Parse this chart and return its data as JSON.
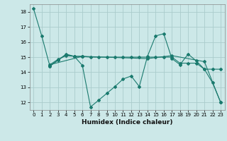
{
  "xlabel": "Humidex (Indice chaleur)",
  "background_color": "#cce8e8",
  "grid_color": "#aacccc",
  "line_color": "#1a7a6e",
  "xlim": [
    -0.5,
    23.5
  ],
  "ylim": [
    11.5,
    18.5
  ],
  "yticks": [
    12,
    13,
    14,
    15,
    16,
    17,
    18
  ],
  "xticks": [
    0,
    1,
    2,
    3,
    4,
    5,
    6,
    7,
    8,
    9,
    10,
    11,
    12,
    13,
    14,
    15,
    16,
    17,
    18,
    19,
    20,
    21,
    22,
    23
  ],
  "lines": [
    {
      "x": [
        0,
        1,
        2,
        3,
        4,
        5,
        6
      ],
      "y": [
        18.2,
        16.4,
        14.4,
        14.8,
        15.15,
        15.05,
        15.05
      ]
    },
    {
      "x": [
        2,
        3,
        4,
        5,
        6,
        7,
        8,
        9,
        10,
        11,
        12,
        13,
        14,
        15,
        16,
        17,
        18,
        19,
        20,
        21,
        22,
        23
      ],
      "y": [
        14.4,
        14.8,
        15.2,
        15.05,
        14.45,
        11.7,
        12.15,
        12.6,
        13.05,
        13.55,
        13.75,
        13.05,
        15.05,
        16.4,
        16.55,
        14.9,
        14.5,
        15.2,
        14.75,
        14.2,
        13.3,
        12.0
      ]
    },
    {
      "x": [
        2,
        3,
        4,
        5,
        6,
        7,
        8,
        9,
        10,
        11,
        12,
        13,
        14,
        15,
        16,
        17,
        18,
        19,
        20,
        21,
        22,
        23
      ],
      "y": [
        14.5,
        14.85,
        15.1,
        15.05,
        15.05,
        15.0,
        15.0,
        15.0,
        15.0,
        15.0,
        15.0,
        15.0,
        15.0,
        15.0,
        15.0,
        15.0,
        14.6,
        14.6,
        14.6,
        14.2,
        14.2,
        14.2
      ]
    },
    {
      "x": [
        2,
        6,
        14,
        17,
        21,
        23
      ],
      "y": [
        14.5,
        15.05,
        14.9,
        15.1,
        14.7,
        12.0
      ]
    }
  ]
}
